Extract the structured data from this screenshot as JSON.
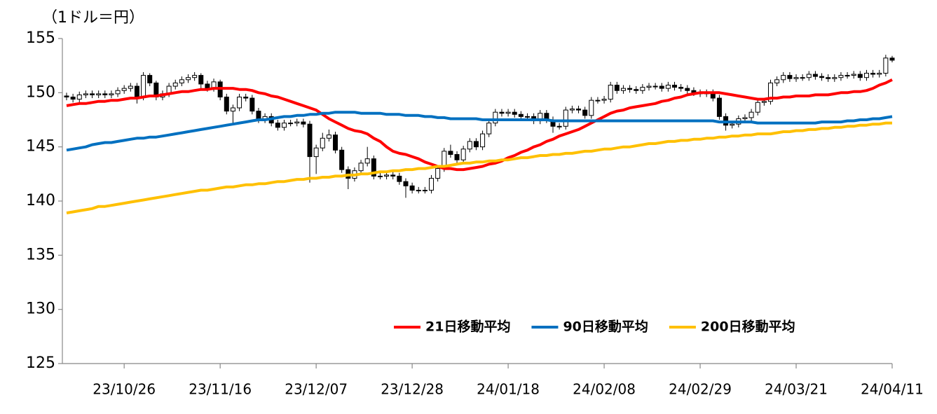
{
  "chart_data": {
    "type": "candlestick",
    "y_axis_label": "（1ドル＝円）",
    "categories": [
      null,
      null,
      null,
      null,
      null,
      null,
      null,
      null,
      null,
      "23/10/26",
      null,
      null,
      null,
      null,
      null,
      null,
      null,
      null,
      null,
      null,
      null,
      null,
      null,
      null,
      "23/11/16",
      null,
      null,
      null,
      null,
      null,
      null,
      null,
      null,
      null,
      null,
      null,
      null,
      null,
      null,
      "23/12/07",
      null,
      null,
      null,
      null,
      null,
      null,
      null,
      null,
      null,
      null,
      null,
      null,
      null,
      null,
      "23/12/28",
      null,
      null,
      null,
      null,
      null,
      null,
      null,
      null,
      null,
      null,
      null,
      null,
      null,
      null,
      "24/01/18",
      null,
      null,
      null,
      null,
      null,
      null,
      null,
      null,
      null,
      null,
      null,
      null,
      null,
      null,
      "24/02/08",
      null,
      null,
      null,
      null,
      null,
      null,
      null,
      null,
      null,
      null,
      null,
      null,
      null,
      null,
      "24/02/29",
      null,
      null,
      null,
      null,
      null,
      null,
      null,
      null,
      null,
      null,
      null,
      null,
      null,
      null,
      "24/03/21",
      null,
      null,
      null,
      null,
      null,
      null,
      null,
      null,
      null,
      null,
      null,
      null,
      null,
      null,
      "24/04/11"
    ],
    "open": [
      149.7,
      149.6,
      149.4,
      149.8,
      149.9,
      149.8,
      149.9,
      149.8,
      149.9,
      150.2,
      150.4,
      150.6,
      149.6,
      151.6,
      150.9,
      149.6,
      149.9,
      150.6,
      150.9,
      151.2,
      151.4,
      151.6,
      150.8,
      150.4,
      151.0,
      149.6,
      148.3,
      148.6,
      149.6,
      149.5,
      148.3,
      147.5,
      147.8,
      147.2,
      146.8,
      147.2,
      147.2,
      147.3,
      147.1,
      144.1,
      144.9,
      145.8,
      146.1,
      144.7,
      142.9,
      142.1,
      142.8,
      143.5,
      143.9,
      142.3,
      142.3,
      142.4,
      142.3,
      141.8,
      141.4,
      141.0,
      141.0,
      141.0,
      142.1,
      143.0,
      144.6,
      144.3,
      143.8,
      144.8,
      145.5,
      145.0,
      146.2,
      147.2,
      148.2,
      148.1,
      148.2,
      148.0,
      147.8,
      147.8,
      147.4,
      148.1,
      147.5,
      146.9,
      146.9,
      148.4,
      148.5,
      148.4,
      147.9,
      149.3,
      149.3,
      149.4,
      150.7,
      150.2,
      150.4,
      150.3,
      150.2,
      150.5,
      150.6,
      150.6,
      150.4,
      150.7,
      150.5,
      150.4,
      150.2,
      150.0,
      149.9,
      150.0,
      149.5,
      147.8,
      147.0,
      147.1,
      147.6,
      147.7,
      148.2,
      149.1,
      149.2,
      150.9,
      151.2,
      151.6,
      151.3,
      151.4,
      151.4,
      151.7,
      151.5,
      151.4,
      151.3,
      151.4,
      151.6,
      151.6,
      151.7,
      151.4,
      151.8,
      151.7,
      151.8,
      153.2
    ],
    "high": [
      150.0,
      149.9,
      150.1,
      150.2,
      150.2,
      150.2,
      150.2,
      150.2,
      150.5,
      150.7,
      150.9,
      150.9,
      151.9,
      151.8,
      151.1,
      150.2,
      150.9,
      151.2,
      151.5,
      151.7,
      151.9,
      151.8,
      151.1,
      151.3,
      151.2,
      149.9,
      148.9,
      149.9,
      149.9,
      149.8,
      148.6,
      148.1,
      148.1,
      147.5,
      147.5,
      147.5,
      147.6,
      147.6,
      147.4,
      145.2,
      146.3,
      146.6,
      146.4,
      145.0,
      143.2,
      143.1,
      143.8,
      145.0,
      144.2,
      142.6,
      142.7,
      142.7,
      142.6,
      142.1,
      141.7,
      141.3,
      141.3,
      142.4,
      143.3,
      144.9,
      145.2,
      144.6,
      145.1,
      145.8,
      145.8,
      146.5,
      147.5,
      148.5,
      148.5,
      148.5,
      148.5,
      148.3,
      148.1,
      148.1,
      148.4,
      148.4,
      147.8,
      147.2,
      148.7,
      148.8,
      148.8,
      148.7,
      149.6,
      149.6,
      149.7,
      151.0,
      151.0,
      150.7,
      150.7,
      150.6,
      150.8,
      150.9,
      150.9,
      150.9,
      151.0,
      151.0,
      150.8,
      150.7,
      150.5,
      150.3,
      150.3,
      150.3,
      149.8,
      148.1,
      147.4,
      147.9,
      148.0,
      148.5,
      149.4,
      149.5,
      151.2,
      151.5,
      151.9,
      151.9,
      151.7,
      151.7,
      152.0,
      152.0,
      151.8,
      151.7,
      151.7,
      151.9,
      151.9,
      152.0,
      152.0,
      152.1,
      152.1,
      152.1,
      153.5,
      153.4
    ],
    "low": [
      149.3,
      149.1,
      149.1,
      149.5,
      149.5,
      149.5,
      149.5,
      149.5,
      149.6,
      149.9,
      150.1,
      149.0,
      149.3,
      150.6,
      149.3,
      149.3,
      149.6,
      150.3,
      150.6,
      150.9,
      151.1,
      150.2,
      150.1,
      150.1,
      149.3,
      148.0,
      147.2,
      148.3,
      149.2,
      148.0,
      147.2,
      147.2,
      146.9,
      146.5,
      146.5,
      146.9,
      146.9,
      146.8,
      141.7,
      142.5,
      144.6,
      145.5,
      144.4,
      142.6,
      141.1,
      141.8,
      142.5,
      143.2,
      142.0,
      142.0,
      142.0,
      142.0,
      141.5,
      140.3,
      140.7,
      140.7,
      140.7,
      140.7,
      141.8,
      142.7,
      144.0,
      143.5,
      143.5,
      144.5,
      144.7,
      144.7,
      145.9,
      146.9,
      147.8,
      147.8,
      147.7,
      147.5,
      147.5,
      147.1,
      147.1,
      147.2,
      146.3,
      146.6,
      146.6,
      148.1,
      148.1,
      147.6,
      147.6,
      149.0,
      149.0,
      149.1,
      149.9,
      149.9,
      150.0,
      149.9,
      149.9,
      150.2,
      150.3,
      150.1,
      150.1,
      150.2,
      150.1,
      149.9,
      149.7,
      149.6,
      149.6,
      149.2,
      147.5,
      146.5,
      146.7,
      146.8,
      147.3,
      147.4,
      147.9,
      148.8,
      148.9,
      150.6,
      150.9,
      151.0,
      151.0,
      151.1,
      151.1,
      151.2,
      151.1,
      151.0,
      151.0,
      151.1,
      151.3,
      151.3,
      151.1,
      151.1,
      151.4,
      151.4,
      151.5,
      152.8
    ],
    "close": [
      149.6,
      149.4,
      149.8,
      149.9,
      149.8,
      149.9,
      149.8,
      149.9,
      150.2,
      150.4,
      150.6,
      149.6,
      151.6,
      150.9,
      149.6,
      149.9,
      150.6,
      150.9,
      151.2,
      151.4,
      151.6,
      150.8,
      150.4,
      151.0,
      149.6,
      148.3,
      148.6,
      149.6,
      149.5,
      148.3,
      147.5,
      147.8,
      147.2,
      146.8,
      147.2,
      147.2,
      147.3,
      147.1,
      144.1,
      144.9,
      145.8,
      146.1,
      144.7,
      142.9,
      142.1,
      142.8,
      143.5,
      143.9,
      142.3,
      142.3,
      142.4,
      142.3,
      141.8,
      141.4,
      141.0,
      141.0,
      141.0,
      142.1,
      143.0,
      144.6,
      144.3,
      143.8,
      144.8,
      145.5,
      145.0,
      146.2,
      147.2,
      148.2,
      148.1,
      148.2,
      148.0,
      147.8,
      147.8,
      147.4,
      148.1,
      147.5,
      146.9,
      146.9,
      148.4,
      148.5,
      148.4,
      147.9,
      149.3,
      149.3,
      149.4,
      150.7,
      150.2,
      150.4,
      150.3,
      150.2,
      150.5,
      150.6,
      150.6,
      150.4,
      150.7,
      150.5,
      150.4,
      150.2,
      150.0,
      149.9,
      150.0,
      149.5,
      147.8,
      147.0,
      147.1,
      147.6,
      147.7,
      148.2,
      149.1,
      149.2,
      150.9,
      151.2,
      151.6,
      151.3,
      151.4,
      151.4,
      151.7,
      151.5,
      151.4,
      151.3,
      151.4,
      151.6,
      151.6,
      151.7,
      151.4,
      151.8,
      151.7,
      151.8,
      153.2,
      153.0
    ],
    "up_color": "#ffffff",
    "down_color": "#000000",
    "series": [
      {
        "name": "21日移動平均",
        "color": "#ff0000",
        "values": [
          148.8,
          148.9,
          149.0,
          149.0,
          149.1,
          149.2,
          149.2,
          149.3,
          149.3,
          149.4,
          149.5,
          149.5,
          149.6,
          149.7,
          149.7,
          149.8,
          149.9,
          150.0,
          150.1,
          150.1,
          150.2,
          150.3,
          150.3,
          150.4,
          150.4,
          150.4,
          150.4,
          150.3,
          150.3,
          150.2,
          150.0,
          149.9,
          149.7,
          149.6,
          149.4,
          149.2,
          149.0,
          148.8,
          148.6,
          148.4,
          148.0,
          147.6,
          147.3,
          147.0,
          146.7,
          146.5,
          146.4,
          146.2,
          145.8,
          145.5,
          145.0,
          144.6,
          144.4,
          144.3,
          144.1,
          143.9,
          143.6,
          143.4,
          143.2,
          143.0,
          143.0,
          142.9,
          142.9,
          143.0,
          143.1,
          143.2,
          143.4,
          143.5,
          143.7,
          144.0,
          144.2,
          144.5,
          144.7,
          145.0,
          145.2,
          145.5,
          145.7,
          146.0,
          146.2,
          146.4,
          146.6,
          146.9,
          147.2,
          147.5,
          147.8,
          148.1,
          148.3,
          148.4,
          148.6,
          148.7,
          148.8,
          148.9,
          149.0,
          149.2,
          149.3,
          149.5,
          149.6,
          149.8,
          149.9,
          150.0,
          150.0,
          150.0,
          150.0,
          149.9,
          149.8,
          149.7,
          149.6,
          149.5,
          149.4,
          149.4,
          149.5,
          149.5,
          149.6,
          149.6,
          149.7,
          149.7,
          149.7,
          149.8,
          149.8,
          149.8,
          149.9,
          150.0,
          150.0,
          150.1,
          150.1,
          150.2,
          150.4,
          150.7,
          150.9,
          151.2
        ]
      },
      {
        "name": "90日移動平均",
        "color": "#0070c0",
        "values": [
          144.7,
          144.8,
          144.9,
          145.0,
          145.2,
          145.3,
          145.4,
          145.4,
          145.5,
          145.6,
          145.7,
          145.8,
          145.8,
          145.9,
          145.9,
          146.0,
          146.1,
          146.2,
          146.3,
          146.4,
          146.5,
          146.6,
          146.7,
          146.8,
          146.9,
          147.0,
          147.1,
          147.2,
          147.3,
          147.4,
          147.5,
          147.5,
          147.6,
          147.7,
          147.8,
          147.8,
          147.9,
          147.9,
          148.0,
          148.0,
          148.1,
          148.1,
          148.2,
          148.2,
          148.2,
          148.2,
          148.1,
          148.1,
          148.1,
          148.1,
          148.0,
          148.0,
          148.0,
          147.9,
          147.9,
          147.9,
          147.8,
          147.8,
          147.7,
          147.7,
          147.6,
          147.6,
          147.6,
          147.6,
          147.6,
          147.5,
          147.5,
          147.5,
          147.5,
          147.5,
          147.5,
          147.5,
          147.5,
          147.5,
          147.5,
          147.5,
          147.4,
          147.4,
          147.4,
          147.4,
          147.4,
          147.4,
          147.4,
          147.4,
          147.4,
          147.4,
          147.4,
          147.4,
          147.4,
          147.4,
          147.4,
          147.4,
          147.4,
          147.4,
          147.4,
          147.4,
          147.4,
          147.4,
          147.4,
          147.4,
          147.4,
          147.4,
          147.3,
          147.3,
          147.3,
          147.3,
          147.3,
          147.3,
          147.2,
          147.2,
          147.2,
          147.2,
          147.2,
          147.2,
          147.2,
          147.2,
          147.2,
          147.2,
          147.3,
          147.3,
          147.3,
          147.3,
          147.4,
          147.4,
          147.5,
          147.5,
          147.6,
          147.6,
          147.7,
          147.8
        ]
      },
      {
        "name": "200日移動平均",
        "color": "#ffc000",
        "values": [
          138.9,
          139.0,
          139.1,
          139.2,
          139.3,
          139.5,
          139.5,
          139.6,
          139.7,
          139.8,
          139.9,
          140.0,
          140.1,
          140.2,
          140.3,
          140.4,
          140.5,
          140.6,
          140.7,
          140.8,
          140.9,
          141.0,
          141.0,
          141.1,
          141.2,
          141.3,
          141.3,
          141.4,
          141.5,
          141.5,
          141.6,
          141.6,
          141.7,
          141.8,
          141.8,
          141.9,
          142.0,
          142.0,
          142.1,
          142.1,
          142.2,
          142.2,
          142.3,
          142.3,
          142.4,
          142.4,
          142.5,
          142.5,
          142.6,
          142.7,
          142.7,
          142.8,
          142.8,
          142.9,
          142.9,
          143.0,
          143.0,
          143.1,
          143.2,
          143.2,
          143.3,
          143.4,
          143.5,
          143.5,
          143.6,
          143.6,
          143.7,
          143.7,
          143.8,
          143.8,
          143.9,
          144.0,
          144.0,
          144.1,
          144.2,
          144.2,
          144.3,
          144.3,
          144.4,
          144.4,
          144.5,
          144.6,
          144.6,
          144.7,
          144.8,
          144.8,
          144.9,
          145.0,
          145.0,
          145.1,
          145.2,
          145.3,
          145.3,
          145.4,
          145.5,
          145.5,
          145.6,
          145.6,
          145.7,
          145.7,
          145.8,
          145.8,
          145.9,
          145.9,
          146.0,
          146.0,
          146.1,
          146.1,
          146.2,
          146.2,
          146.2,
          146.3,
          146.4,
          146.4,
          146.5,
          146.5,
          146.6,
          146.6,
          146.7,
          146.7,
          146.8,
          146.8,
          146.9,
          146.9,
          147.0,
          147.0,
          147.1,
          147.1,
          147.2,
          147.2
        ]
      }
    ],
    "ylim": [
      125,
      155
    ],
    "yticks": [
      125,
      130,
      135,
      140,
      145,
      150,
      155
    ],
    "legend": "lower right"
  }
}
